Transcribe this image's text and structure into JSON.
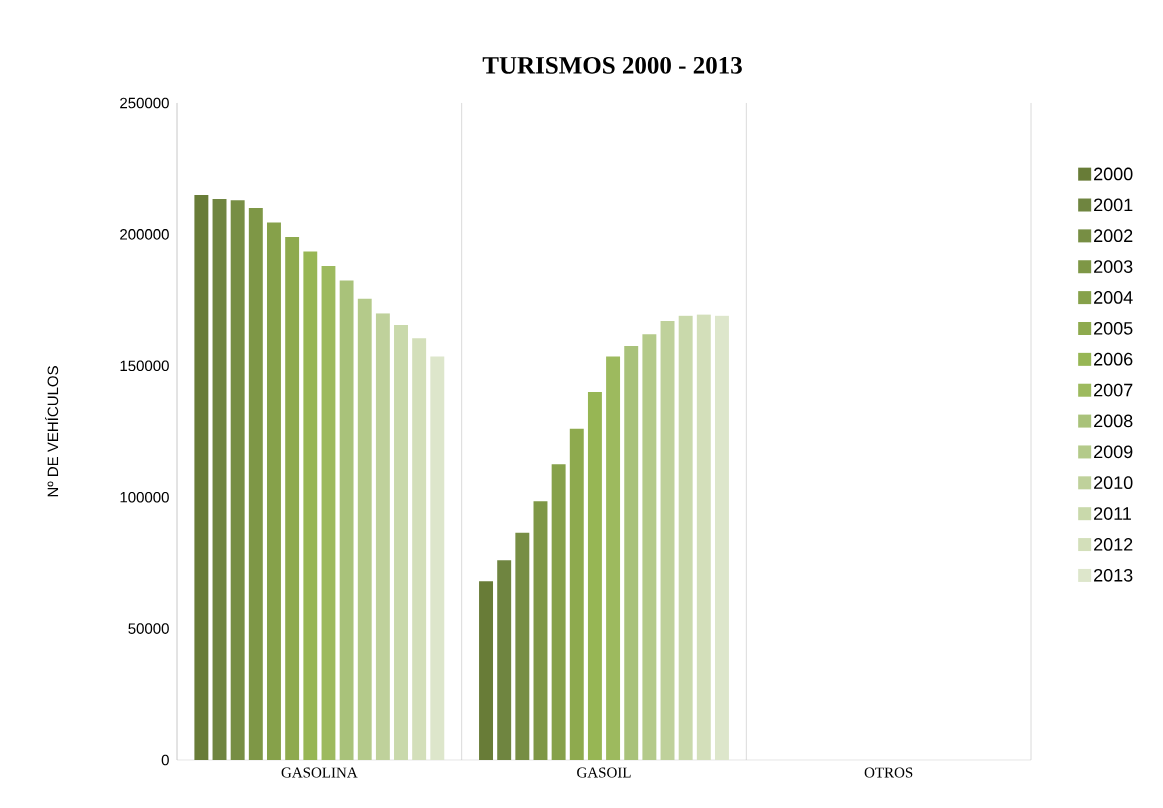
{
  "chart_data": {
    "type": "bar",
    "title": "TURISMOS 2000 - 2013",
    "ylabel": "Nº DE VEHÍCULOS",
    "categories": [
      "GASOLINA",
      "GASOIL",
      "OTROS"
    ],
    "series": [
      {
        "name": "2000",
        "color": "#687c37",
        "values": [
          215000,
          68000,
          0
        ]
      },
      {
        "name": "2001",
        "color": "#6f8540",
        "values": [
          213500,
          76000,
          0
        ]
      },
      {
        "name": "2002",
        "color": "#778e44",
        "values": [
          213000,
          86500,
          0
        ]
      },
      {
        "name": "2003",
        "color": "#7e9746",
        "values": [
          210000,
          98500,
          0
        ]
      },
      {
        "name": "2004",
        "color": "#86a14a",
        "values": [
          204500,
          112500,
          0
        ]
      },
      {
        "name": "2005",
        "color": "#8eaa4e",
        "values": [
          199000,
          126000,
          0
        ]
      },
      {
        "name": "2006",
        "color": "#97b654",
        "values": [
          193500,
          140000,
          0
        ]
      },
      {
        "name": "2007",
        "color": "#9dba5e",
        "values": [
          188000,
          153500,
          0
        ]
      },
      {
        "name": "2008",
        "color": "#a9c27a",
        "values": [
          182500,
          157500,
          0
        ]
      },
      {
        "name": "2009",
        "color": "#b4ca8a",
        "values": [
          175500,
          162000,
          0
        ]
      },
      {
        "name": "2010",
        "color": "#bfd19b",
        "values": [
          170000,
          167000,
          0
        ]
      },
      {
        "name": "2011",
        "color": "#c9d9ab",
        "values": [
          165500,
          169000,
          0
        ]
      },
      {
        "name": "2012",
        "color": "#d3dfba",
        "values": [
          160500,
          169500,
          0
        ]
      },
      {
        "name": "2013",
        "color": "#dde6cb",
        "values": [
          153500,
          169000,
          0
        ]
      }
    ],
    "ylim": [
      0,
      250000
    ],
    "yticks": [
      0,
      50000,
      100000,
      150000,
      200000,
      250000
    ],
    "grid": "x",
    "legend": "right"
  }
}
